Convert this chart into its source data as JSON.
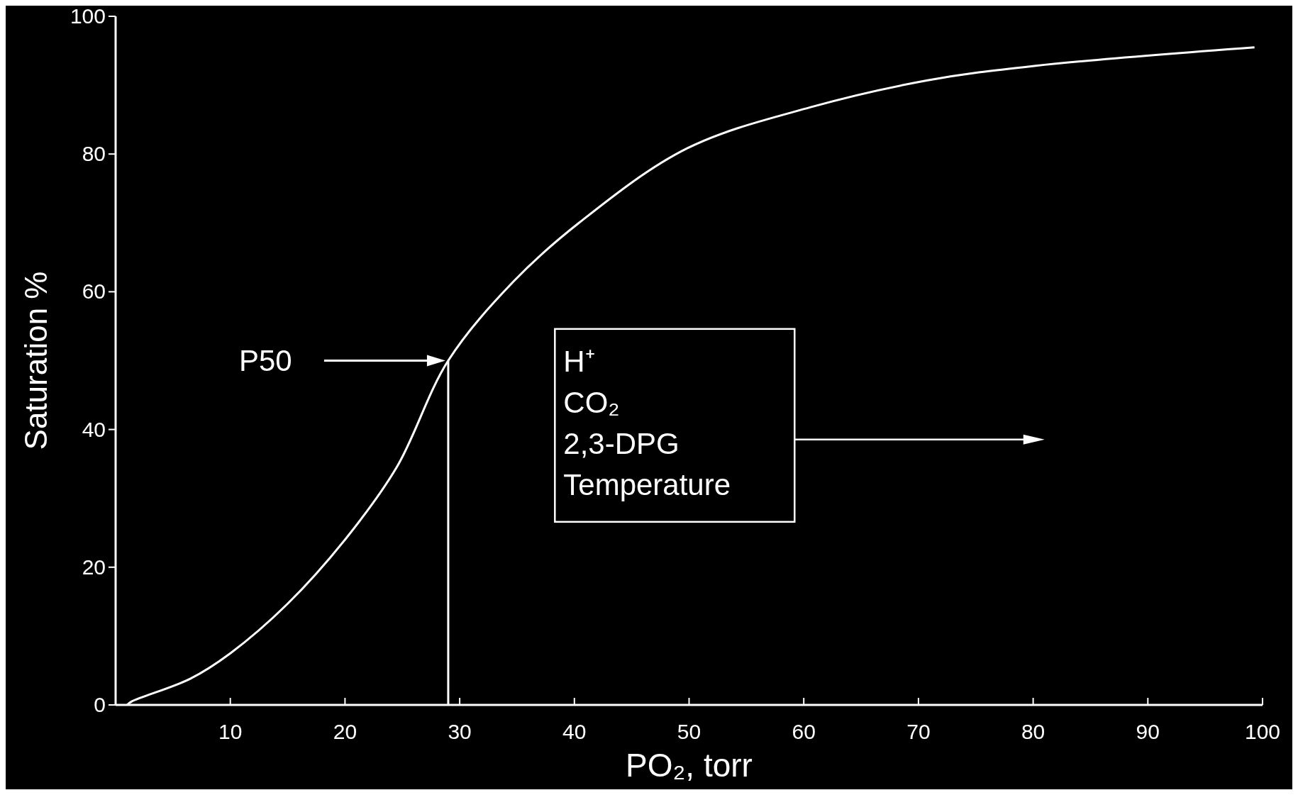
{
  "chart_data": {
    "type": "line",
    "xlabel": "PO₂, torr",
    "ylabel": "Saturation %",
    "xlim": [
      0,
      100
    ],
    "ylim": [
      0,
      100
    ],
    "xticks": [
      {
        "value": 0,
        "label": null
      },
      10,
      20,
      30,
      40,
      50,
      60,
      70,
      80,
      90,
      100
    ],
    "yticks": [
      0,
      20,
      40,
      60,
      80,
      100
    ],
    "grid": false,
    "marker": "none",
    "line_style": "solid",
    "series": [
      {
        "color": "#ffffff",
        "x": [
          1,
          1.4,
          6.5,
          10,
          15,
          20,
          24.5,
          29,
          34.7,
          40.4,
          49.8,
          60.6,
          70.8,
          80.1,
          99.3
        ],
        "values": [
          0,
          0.5,
          3.8,
          7.5,
          14.7,
          24,
          34.5,
          50,
          61.5,
          70,
          80.8,
          86.8,
          90.7,
          92.8,
          95.5
        ]
      },
      {
        "color": "#ffffff",
        "x": [
          29,
          29
        ],
        "values": [
          0,
          50
        ]
      }
    ],
    "annotations": [
      "P50",
      "H⁺",
      "CO₂",
      "2,3-DPG",
      "Temperature"
    ]
  }
}
